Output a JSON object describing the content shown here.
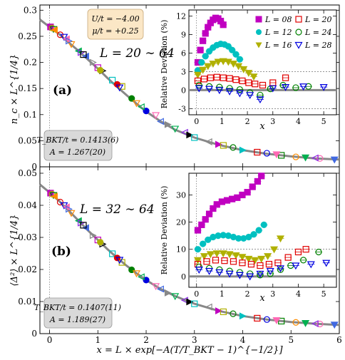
{
  "colors": {
    "L08": "#c000c0",
    "L12": "#00c0c0",
    "L16": "#b0b000",
    "L20": "#e00000",
    "L24": "#008000",
    "L28": "#0000e0",
    "fit_curve": "#888888",
    "params_box_fill": "#fbe7c6",
    "tbkt_box_fill": "#d9d9d9"
  },
  "panels": {
    "a": {
      "letter": "(a)",
      "range": "L = 20 ∼ 64",
      "ylabel": "n_c × L^{1/4}",
      "params": [
        "U/t = −4.00",
        "μ/t = +0.25"
      ],
      "tbkt": [
        "T_BKT/t = 0.1413(6)",
        "A = 1.267(20)"
      ]
    },
    "b": {
      "letter": "(b)",
      "range": "L = 32 ∼ 64",
      "ylabel": "⟨Δ²⟩ × L^{1/4}",
      "tbkt": [
        "T_BKT/t = 0.1407(11)",
        "A = 1.189(27)"
      ]
    },
    "xlabel": "x = L × exp[−A(T/T_BKT − 1)^{−1/2}]"
  },
  "chart_data": [
    {
      "type": "scatter",
      "panel": "a",
      "xlim": [
        -0.2,
        6
      ],
      "ylim": [
        0,
        0.31
      ],
      "xticks": [
        0,
        1,
        2,
        3,
        4,
        5,
        6
      ],
      "yticks": [
        0,
        0.05,
        0.1,
        0.15,
        0.2,
        0.25,
        0.3
      ],
      "ylabel": "n_c × L^{1/4}",
      "fit_curve": {
        "x": [
          -0.2,
          0,
          0.2,
          0.4,
          0.6,
          0.8,
          1.0,
          1.2,
          1.4,
          1.6,
          1.8,
          2.0,
          2.3,
          2.6,
          3.0,
          3.5,
          4.0,
          4.5,
          5.0,
          5.5,
          6.0
        ],
        "y": [
          0.282,
          0.268,
          0.254,
          0.238,
          0.222,
          0.205,
          0.188,
          0.17,
          0.153,
          0.137,
          0.121,
          0.106,
          0.087,
          0.071,
          0.056,
          0.042,
          0.032,
          0.025,
          0.02,
          0.016,
          0.014
        ]
      },
      "series_colors": [
        "#c000c0",
        "#00c0c0",
        "#b0b000",
        "#e00000",
        "#008000",
        "#0000e0",
        "#ff8c00",
        "#ff69b4",
        "#00b050",
        "#4169e1",
        "#8a2be2",
        "#888888",
        "#000000"
      ],
      "series": [
        {
          "values_x": [
            0.02,
            0.22,
            0.45,
            0.75,
            1.1,
            1.5,
            2.0,
            2.6,
            3.3,
            4.0,
            4.8,
            5.6
          ],
          "values_y": [
            0.268,
            0.253,
            0.235,
            0.212,
            0.184,
            0.154,
            0.107,
            0.073,
            0.048,
            0.032,
            0.022,
            0.016
          ]
        },
        {
          "values_x": [
            0.05,
            0.3,
            0.6,
            0.9,
            1.3,
            1.7,
            2.2,
            2.8,
            3.5,
            4.3,
            5.1,
            5.9
          ],
          "values_y": [
            0.266,
            0.249,
            0.222,
            0.2,
            0.166,
            0.131,
            0.099,
            0.066,
            0.043,
            0.028,
            0.019,
            0.014
          ]
        },
        {
          "values_x": [
            0.08,
            0.35,
            0.65,
            1.0,
            1.4,
            1.8,
            2.3,
            2.9,
            3.6,
            4.5,
            5.3
          ],
          "values_y": [
            0.264,
            0.245,
            0.219,
            0.19,
            0.158,
            0.122,
            0.087,
            0.061,
            0.041,
            0.026,
            0.018
          ]
        },
        {
          "values_x": [
            0.1,
            0.4,
            0.7,
            1.05,
            1.45,
            1.9,
            2.45,
            3.0,
            3.8,
            4.7,
            5.5
          ],
          "values_y": [
            0.262,
            0.241,
            0.215,
            0.185,
            0.152,
            0.115,
            0.081,
            0.056,
            0.037,
            0.024,
            0.017
          ]
        }
      ]
    },
    {
      "type": "line",
      "panel": "a-inset",
      "xlim": [
        -0.3,
        5.5
      ],
      "ylim": [
        -4,
        13
      ],
      "xticks": [
        0,
        1,
        2,
        3,
        4,
        5
      ],
      "yticks": [
        -3,
        0,
        3,
        6,
        9,
        12
      ],
      "xlabel": "x",
      "ylabel": "Relative Deviation (%)",
      "reference_lines": [
        -3,
        3
      ],
      "series": [
        {
          "name": "L = 08",
          "x": [
            0.05,
            0.15,
            0.25,
            0.35,
            0.45,
            0.55,
            0.65,
            0.75,
            0.85,
            0.95,
            1.05
          ],
          "y": [
            4.5,
            6.5,
            8.0,
            9.2,
            10.2,
            10.9,
            11.4,
            11.7,
            11.6,
            11.2,
            10.6
          ]
        },
        {
          "name": "L = 12",
          "x": [
            0.05,
            0.2,
            0.35,
            0.5,
            0.65,
            0.8,
            0.95,
            1.1,
            1.25,
            1.4,
            1.55,
            1.7
          ],
          "y": [
            3.2,
            4.5,
            5.5,
            6.3,
            6.9,
            7.3,
            7.5,
            7.4,
            7.1,
            6.5,
            5.8,
            5.0
          ]
        },
        {
          "name": "L = 16",
          "x": [
            0.05,
            0.25,
            0.45,
            0.65,
            0.85,
            1.05,
            1.25,
            1.45,
            1.65,
            1.85,
            2.05,
            2.25
          ],
          "y": [
            2.5,
            3.3,
            3.9,
            4.3,
            4.6,
            4.7,
            4.6,
            4.3,
            3.9,
            3.4,
            2.8,
            2.2
          ]
        },
        {
          "name": "L = 20",
          "x": [
            0.05,
            0.3,
            0.55,
            0.8,
            1.05,
            1.3,
            1.55,
            1.8,
            2.05,
            2.3,
            2.6,
            3.0,
            3.5
          ],
          "y": [
            1.5,
            1.8,
            2.0,
            2.1,
            2.0,
            1.9,
            1.7,
            1.5,
            1.2,
            1.0,
            0.8,
            1.2,
            2.0
          ]
        },
        {
          "name": "L = 24",
          "x": [
            0.1,
            0.5,
            0.9,
            1.3,
            1.7,
            2.1,
            2.5,
            2.9,
            3.4,
            3.9,
            4.4
          ],
          "y": [
            0.8,
            0.6,
            0.5,
            0.3,
            0.1,
            -0.4,
            -0.8,
            0.2,
            0.8,
            0.4,
            0.6
          ]
        },
        {
          "name": "L = 28",
          "x": [
            0.1,
            0.5,
            0.9,
            1.3,
            1.7,
            2.1,
            2.5,
            3.0,
            3.5,
            4.2,
            5.0
          ],
          "y": [
            0.3,
            0.2,
            0.0,
            -0.2,
            -0.5,
            -0.8,
            -1.5,
            0.3,
            0.5,
            0.6,
            0.5
          ]
        }
      ]
    },
    {
      "type": "scatter",
      "panel": "b",
      "xlim": [
        -0.2,
        6
      ],
      "ylim": [
        0,
        0.052
      ],
      "xticks": [
        0,
        1,
        2,
        3,
        4,
        5,
        6
      ],
      "yticks": [
        0,
        0.01,
        0.02,
        0.03,
        0.04,
        0.05
      ],
      "ylabel": "⟨Δ²⟩ × L^{1/4}",
      "fit_curve": {
        "x": [
          -0.2,
          0,
          0.2,
          0.4,
          0.6,
          0.8,
          1.0,
          1.2,
          1.4,
          1.6,
          1.8,
          2.0,
          2.3,
          2.6,
          3.0,
          3.5,
          4.0,
          4.5,
          5.0,
          5.5,
          6.0
        ],
        "y": [
          0.0465,
          0.044,
          0.0413,
          0.0383,
          0.0352,
          0.0321,
          0.0292,
          0.0263,
          0.0236,
          0.0211,
          0.0188,
          0.0167,
          0.0139,
          0.0117,
          0.0093,
          0.0071,
          0.0055,
          0.0044,
          0.0036,
          0.0031,
          0.0027
        ]
      },
      "series_colors": [
        "#c000c0",
        "#00c0c0",
        "#b0b000",
        "#e00000",
        "#008000",
        "#0000e0",
        "#ff8c00",
        "#ff69b4",
        "#00b050",
        "#4169e1",
        "#8a2be2",
        "#888888",
        "#000000"
      ],
      "series": [
        {
          "values_x": [
            0.02,
            0.22,
            0.45,
            0.75,
            1.1,
            1.5,
            2.0,
            2.6,
            3.3,
            4.0,
            4.8,
            5.6
          ],
          "values_y": [
            0.0438,
            0.041,
            0.0376,
            0.033,
            0.0279,
            0.0222,
            0.0167,
            0.0117,
            0.0083,
            0.0055,
            0.0039,
            0.003
          ]
        },
        {
          "values_x": [
            0.05,
            0.3,
            0.6,
            0.9,
            1.3,
            1.7,
            2.2,
            2.8,
            3.5,
            4.3,
            5.1,
            5.9
          ],
          "values_y": [
            0.0435,
            0.04,
            0.0352,
            0.0306,
            0.0249,
            0.0199,
            0.0148,
            0.0104,
            0.0071,
            0.0048,
            0.0035,
            0.0028
          ]
        },
        {
          "values_x": [
            0.08,
            0.35,
            0.65,
            1.0,
            1.4,
            1.8,
            2.3,
            2.9,
            3.6,
            4.5,
            5.3
          ],
          "values_y": [
            0.0432,
            0.0395,
            0.0345,
            0.0292,
            0.0236,
            0.0188,
            0.0139,
            0.0099,
            0.0068,
            0.0044,
            0.0033
          ]
        },
        {
          "values_x": [
            0.1,
            0.4,
            0.7,
            1.05,
            1.45,
            1.9,
            2.45,
            3.0,
            3.8,
            4.7,
            5.5
          ],
          "values_y": [
            0.0428,
            0.0388,
            0.0338,
            0.0285,
            0.023,
            0.0177,
            0.0127,
            0.0093,
            0.0062,
            0.0042,
            0.0031
          ]
        }
      ]
    },
    {
      "type": "line",
      "panel": "b-inset",
      "xlim": [
        -0.3,
        5.5
      ],
      "ylim": [
        -4,
        38
      ],
      "xticks": [
        0,
        1,
        2,
        3,
        4,
        5
      ],
      "yticks": [
        0,
        10,
        20,
        30
      ],
      "xlabel": "x",
      "ylabel": "Relative Deviation (%)",
      "reference_lines": [
        10
      ],
      "series": [
        {
          "name": "L = 08",
          "x": [
            0.05,
            0.2,
            0.35,
            0.5,
            0.65,
            0.8,
            1.0,
            1.2,
            1.4,
            1.6,
            1.8,
            2.0,
            2.2,
            2.4,
            2.55
          ],
          "y": [
            17,
            19,
            21,
            23,
            25,
            26.5,
            27.5,
            28,
            28.5,
            29,
            30,
            31,
            33,
            35,
            37
          ]
        },
        {
          "name": "L = 12",
          "x": [
            0.05,
            0.25,
            0.45,
            0.65,
            0.85,
            1.05,
            1.25,
            1.45,
            1.65,
            1.85,
            2.05,
            2.25,
            2.45,
            2.65
          ],
          "y": [
            10,
            12,
            13.5,
            14.5,
            15,
            15.2,
            15,
            14.5,
            14,
            14,
            14.5,
            15.5,
            17,
            19
          ]
        },
        {
          "name": "L = 16",
          "x": [
            0.05,
            0.3,
            0.55,
            0.8,
            1.05,
            1.3,
            1.55,
            1.8,
            2.05,
            2.3,
            2.55,
            2.8,
            3.05,
            3.3
          ],
          "y": [
            6,
            7.5,
            8.2,
            8.5,
            8.5,
            8.2,
            7.8,
            7.2,
            6.5,
            6,
            6.5,
            7.5,
            10,
            14
          ]
        },
        {
          "name": "L = 20",
          "x": [
            0.05,
            0.4,
            0.75,
            1.1,
            1.45,
            1.8,
            2.15,
            2.5,
            2.85,
            3.2,
            3.6,
            4.0,
            4.3
          ],
          "y": [
            4.5,
            5.5,
            6,
            5.8,
            5.5,
            5,
            4.5,
            4,
            4.5,
            5,
            7,
            9,
            10
          ]
        },
        {
          "name": "L = 24",
          "x": [
            0.1,
            0.5,
            0.9,
            1.3,
            1.7,
            2.1,
            2.5,
            2.9,
            3.3,
            3.7,
            4.2,
            4.8
          ],
          "y": [
            3.5,
            3,
            2.5,
            2,
            1.5,
            1,
            0.5,
            1,
            2.5,
            4,
            6,
            9
          ]
        },
        {
          "name": "L = 28",
          "x": [
            0.1,
            0.5,
            0.9,
            1.3,
            1.7,
            2.1,
            2.5,
            2.9,
            3.3,
            3.9,
            4.5,
            5.1
          ],
          "y": [
            2.5,
            2,
            1.5,
            1,
            0.5,
            0,
            1,
            2,
            3,
            4,
            4.5,
            5
          ]
        }
      ]
    }
  ]
}
